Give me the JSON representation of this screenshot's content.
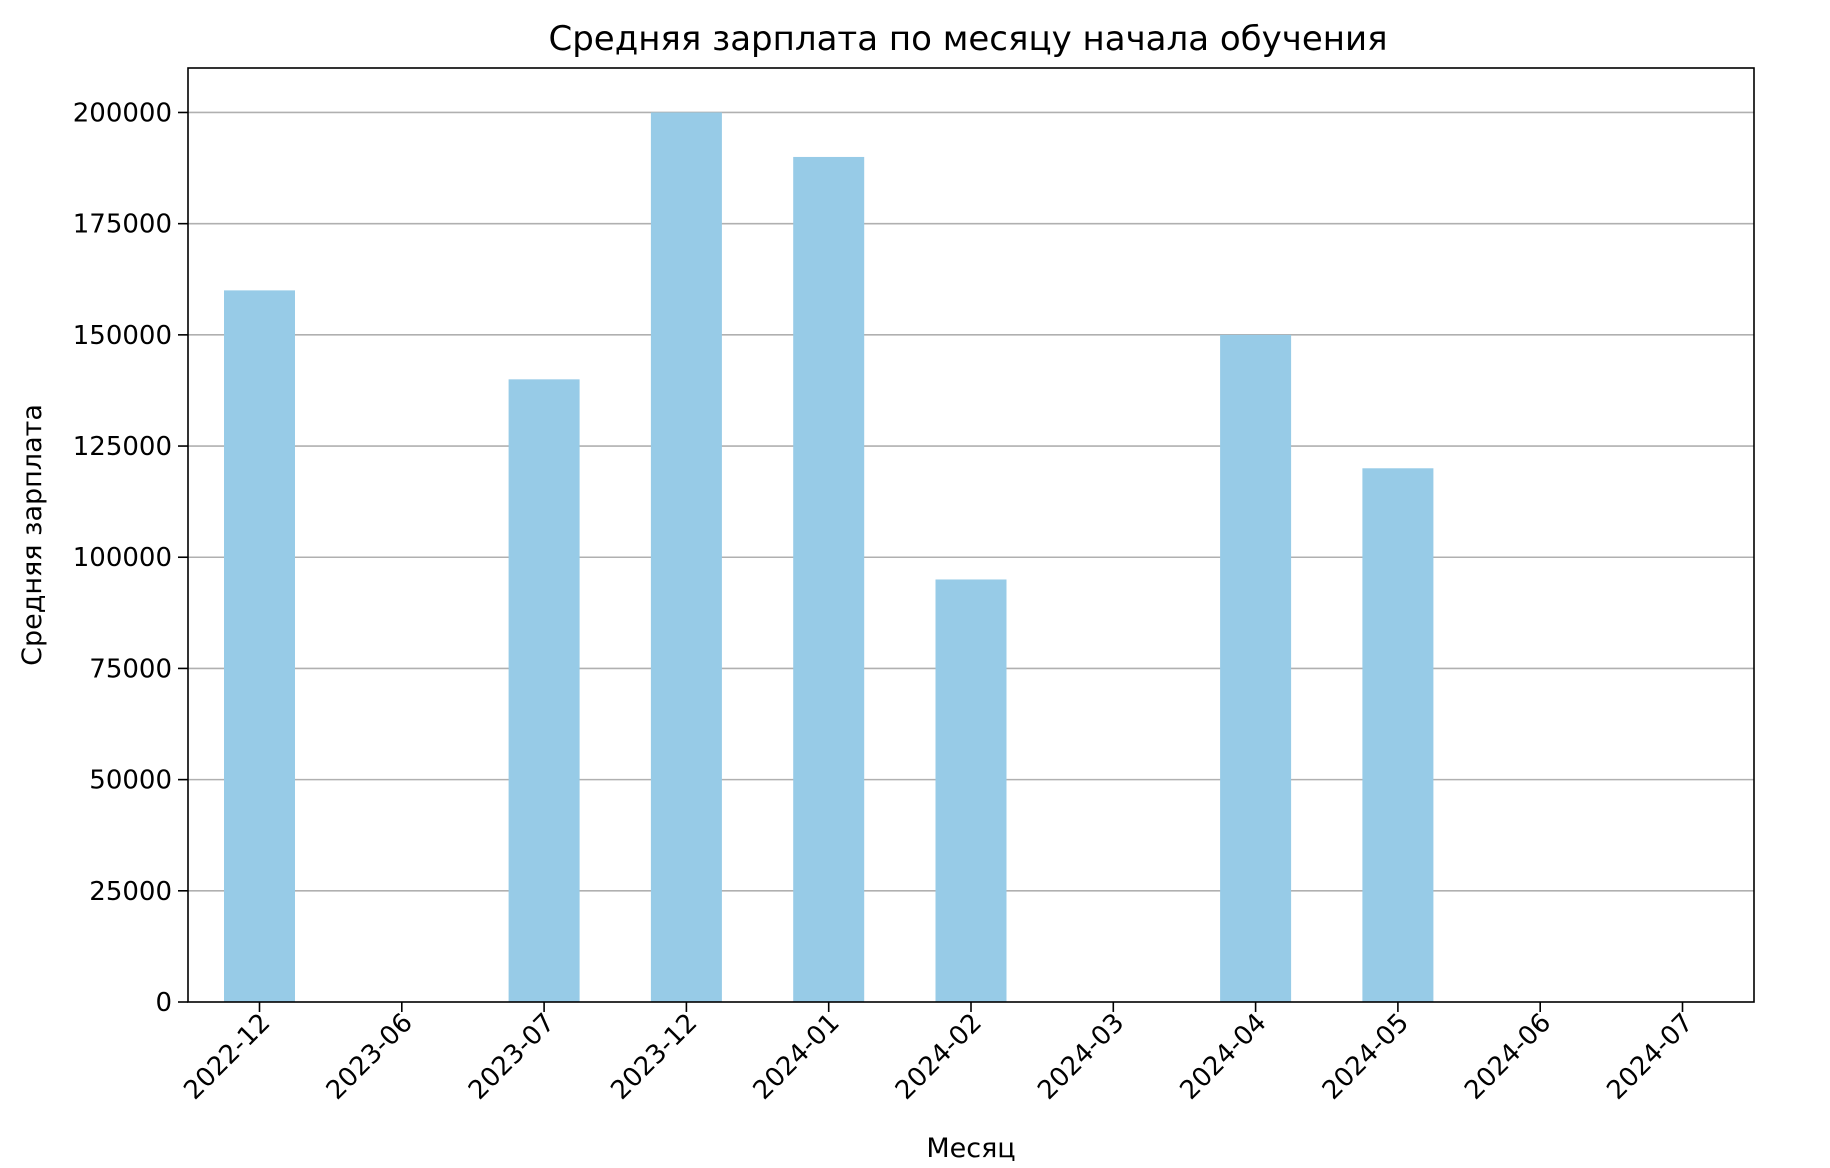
{
  "chart_data": {
    "type": "bar",
    "title": "Средняя зарплата по месяцу начала обучения",
    "xlabel": "Месяц",
    "ylabel": "Средняя зарплата",
    "categories": [
      "2022-12",
      "2023-06",
      "2023-07",
      "2023-12",
      "2024-01",
      "2024-02",
      "2024-03",
      "2024-04",
      "2024-05",
      "2024-06",
      "2024-07"
    ],
    "values": [
      160000,
      0,
      140000,
      200000,
      190000,
      95000,
      0,
      150000,
      120000,
      0,
      0
    ],
    "ylim": [
      0,
      210000
    ],
    "yticks": [
      0,
      25000,
      50000,
      75000,
      100000,
      125000,
      150000,
      175000,
      200000
    ],
    "ytick_labels": [
      "0",
      "25000",
      "50000",
      "75000",
      "100000",
      "125000",
      "150000",
      "175000",
      "200000"
    ],
    "grid": "y",
    "xtick_rotation": "45 degrees",
    "colors": {
      "bar": "#97cbe7",
      "grid": "#b0b0b0",
      "axes": "#000000"
    }
  }
}
